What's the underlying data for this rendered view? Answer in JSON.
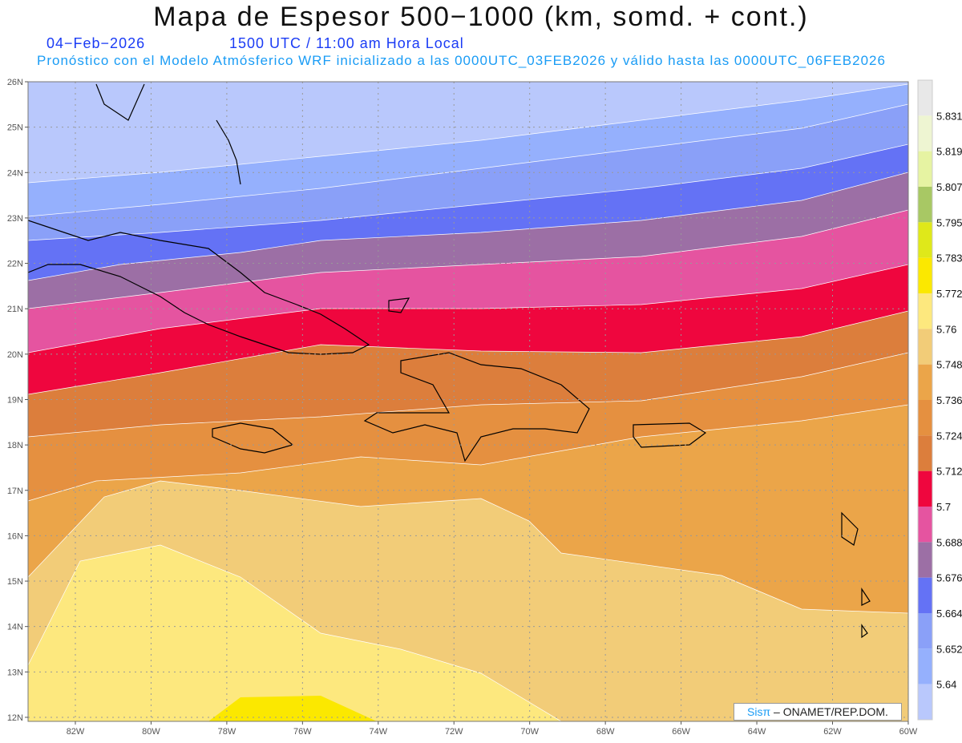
{
  "title": "Mapa de Espesor 500−1000 (km, somd. + cont.)",
  "date": "04−Feb−2026",
  "time": "1500 UTC / 11:00 am Hora Local",
  "subtitle": "Pronóstico con el Modelo Atmósferico WRF inicializado a las 0000UTC_03FEB2026 y válido hasta las  0000UTC_06FEB2026",
  "lat_labels": [
    "26N",
    "25N",
    "24N",
    "23N",
    "22N",
    "21N",
    "20N",
    "19N",
    "18N",
    "17N",
    "16N",
    "15N",
    "14N",
    "13N",
    "12N"
  ],
  "lon_labels": [
    "82W",
    "80W",
    "78W",
    "76W",
    "74W",
    "72W",
    "70W",
    "68W",
    "66W",
    "64W",
    "62W",
    "60W"
  ],
  "colorbar": {
    "labels": [
      "5.831",
      "5.819",
      "5.807",
      "5.795",
      "5.783",
      "5.772",
      "5.76",
      "5.748",
      "5.736",
      "5.724",
      "5.712",
      "5.7",
      "5.688",
      "5.676",
      "5.664",
      "5.652",
      "5.64"
    ],
    "colors": [
      "#e8e8e8",
      "#eef5d2",
      "#e6f3a2",
      "#a8c864",
      "#dfe81a",
      "#fbe800",
      "#fde87e",
      "#f2cc78",
      "#eba549",
      "#e59040",
      "#dc7e3c",
      "#ef063e",
      "#e554a0",
      "#9c6fa5",
      "#6472f5",
      "#8aa0f8",
      "#95b0fd",
      "#b9c8fc"
    ]
  },
  "credit": {
    "brand": "Sisπ",
    "text": " – ONAMET/REP.DOM."
  }
}
